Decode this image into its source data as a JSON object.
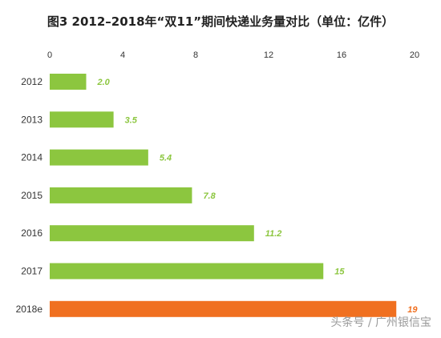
{
  "chart_data": {
    "type": "bar",
    "orientation": "horizontal",
    "title": "图3  2012–2018年“双11”期间快递业务量对比（单位：亿件）",
    "categories": [
      "2012",
      "2013",
      "2014",
      "2015",
      "2016",
      "2017",
      "2018e"
    ],
    "values": [
      2.0,
      3.5,
      5.4,
      7.8,
      11.2,
      15,
      19
    ],
    "value_labels": [
      "2.0",
      "3.5",
      "5.4",
      "7.8",
      "11.2",
      "15",
      "19"
    ],
    "xlim": [
      0,
      20
    ],
    "x_ticks": [
      "0",
      "4",
      "8",
      "12",
      "16",
      "20"
    ],
    "x_axis_position": "top",
    "grid": false,
    "colors": {
      "default_bar": "#8cc63f",
      "highlight_bar": "#f07020",
      "default_label": "#8cc63f",
      "highlight_label": "#f07020"
    },
    "highlight_index": 6
  },
  "watermark": "头条号 / 广州银信宝"
}
